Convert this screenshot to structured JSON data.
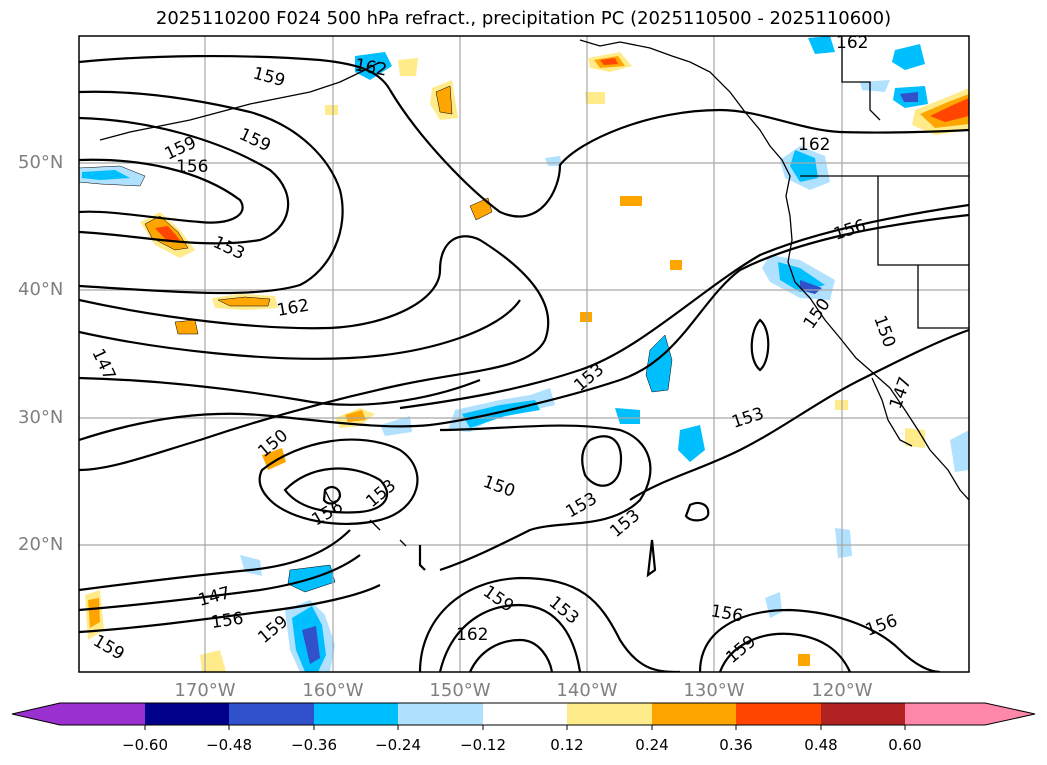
{
  "title": "2025110200 F024 500 hPa refract., precipitation PC (2025110500 - 2025110600)",
  "latitude_labels": [
    "50°N",
    "40°N",
    "30°N",
    "20°N"
  ],
  "longitude_labels": [
    "170°W",
    "160°W",
    "150°W",
    "140°W",
    "130°W",
    "120°W"
  ],
  "colorbar": {
    "ticks": [
      "−0.60",
      "−0.48",
      "−0.36",
      "−0.24",
      "−0.12",
      "0.12",
      "0.24",
      "0.36",
      "0.48",
      "0.60"
    ],
    "colors": {
      "below_min": "#9b30d0",
      "b1": "#00008b",
      "b2": "#3050cc",
      "b3": "#00bfff",
      "b4": "#b0e2ff",
      "b5": "#ffffff",
      "b6": "#ffeb8a",
      "b7": "#ffa500",
      "b8": "#ff4500",
      "b9": "#b22222",
      "above_max": "#ff88aa"
    }
  },
  "contour_labels": [
    "159",
    "159",
    "159",
    "156",
    "153",
    "162",
    "147",
    "150",
    "153",
    "150",
    "156",
    "153",
    "153",
    "153",
    "147",
    "156",
    "159",
    "159",
    "162",
    "159",
    "153",
    "156",
    "159",
    "156",
    "162",
    "162",
    "156",
    "150",
    "150",
    "153",
    "162",
    "147"
  ]
}
